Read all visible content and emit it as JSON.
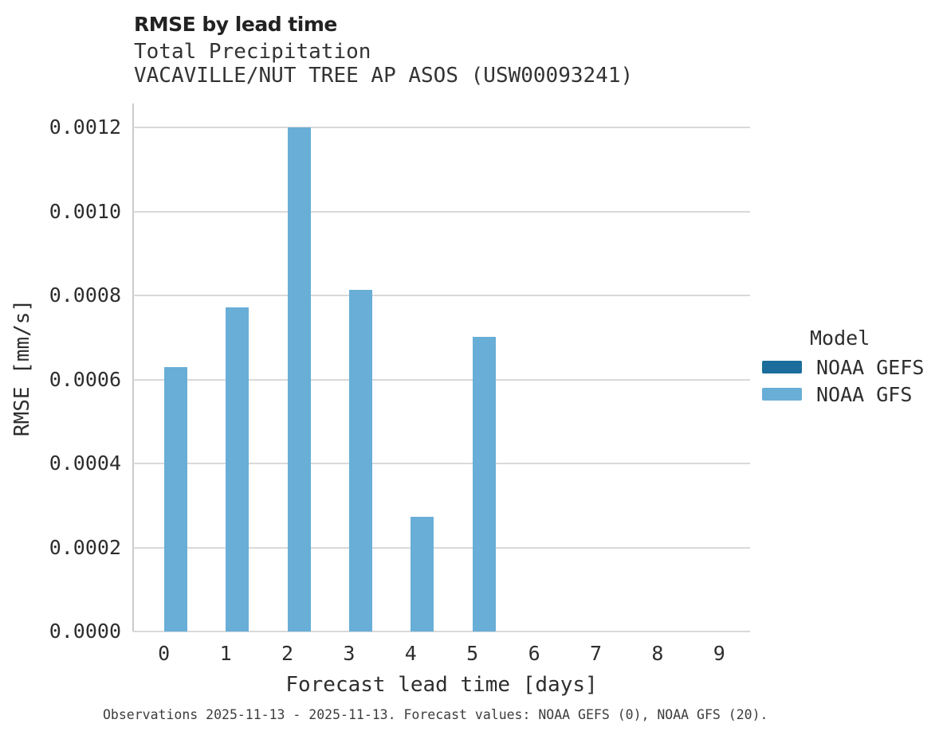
{
  "header": {
    "title": "RMSE by lead time",
    "subtitle1": "Total Precipitation",
    "subtitle2": "VACAVILLE/NUT TREE AP ASOS (USW00093241)"
  },
  "chart_data": {
    "type": "bar",
    "title": "RMSE by lead time",
    "subtitle": [
      "Total Precipitation",
      "VACAVILLE/NUT TREE AP ASOS (USW00093241)"
    ],
    "xlabel": "Forecast lead time [days]",
    "ylabel": "RMSE [mm/s]",
    "categories": [
      "0",
      "1",
      "2",
      "3",
      "4",
      "5",
      "6",
      "7",
      "8",
      "9"
    ],
    "series": [
      {
        "name": "NOAA GEFS",
        "color": "#1c6d9c",
        "values": [
          null,
          null,
          null,
          null,
          null,
          null,
          null,
          null,
          null,
          null
        ]
      },
      {
        "name": "NOAA GFS",
        "color": "#68aed7",
        "values": [
          0.00063,
          0.000772,
          0.0012,
          0.000813,
          0.000273,
          0.000701,
          null,
          null,
          null,
          null
        ]
      }
    ],
    "ylim": [
      0,
      0.001257
    ],
    "yticks": [
      {
        "value": 0.0,
        "label": "0.0000"
      },
      {
        "value": 0.0002,
        "label": "0.0002"
      },
      {
        "value": 0.0004,
        "label": "0.0004"
      },
      {
        "value": 0.0006,
        "label": "0.0006"
      },
      {
        "value": 0.0008,
        "label": "0.0008"
      },
      {
        "value": 0.001,
        "label": "0.0010"
      },
      {
        "value": 0.0012,
        "label": "0.0012"
      }
    ],
    "grid": true,
    "legend": {
      "title": "Model",
      "position": "right"
    }
  },
  "footer": {
    "note": "Observations 2025-11-13 - 2025-11-13. Forecast values: NOAA GEFS (0), NOAA GFS (20)."
  },
  "colors": {
    "noaa_gefs": "#1c6d9c",
    "noaa_gfs": "#68aed7",
    "gridline": "#d9d9d9",
    "axis_spine": "#cbcbcb"
  }
}
